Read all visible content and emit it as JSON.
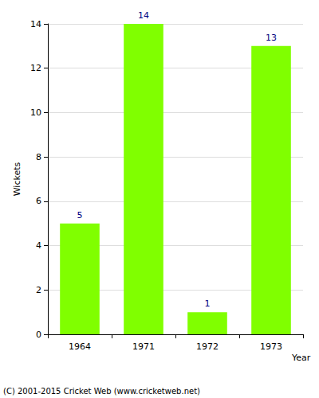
{
  "chart_data": {
    "type": "bar",
    "x_label": "Year",
    "y_label": "Wickets",
    "categories": [
      "1964",
      "1971",
      "1972",
      "1973"
    ],
    "values": [
      5,
      14,
      1,
      13
    ],
    "color": "#80ff00",
    "ylim": [
      0,
      14
    ],
    "yticks": [
      0,
      2,
      4,
      6,
      8,
      10,
      12,
      14
    ],
    "grid": true,
    "data_labels": true,
    "annotations": [
      "(C) 2001-2015 Cricket Web (www.cricketweb.net)"
    ]
  }
}
